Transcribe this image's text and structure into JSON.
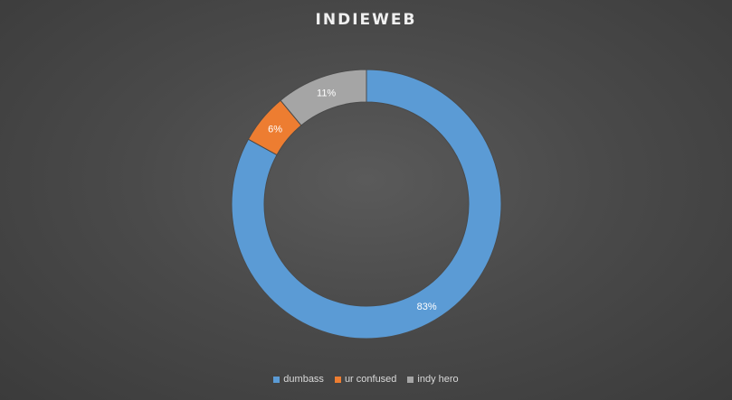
{
  "chart_data": {
    "type": "pie",
    "title": "INDIEWEB",
    "donut": true,
    "categories": [
      "dumbass",
      "ur confused",
      "indy hero"
    ],
    "values": [
      83,
      6,
      11
    ],
    "labels": [
      "83%",
      "6%",
      "11%"
    ],
    "colors": [
      "#5b9bd5",
      "#ed7d31",
      "#a5a5a5"
    ],
    "legend": "bottom"
  }
}
